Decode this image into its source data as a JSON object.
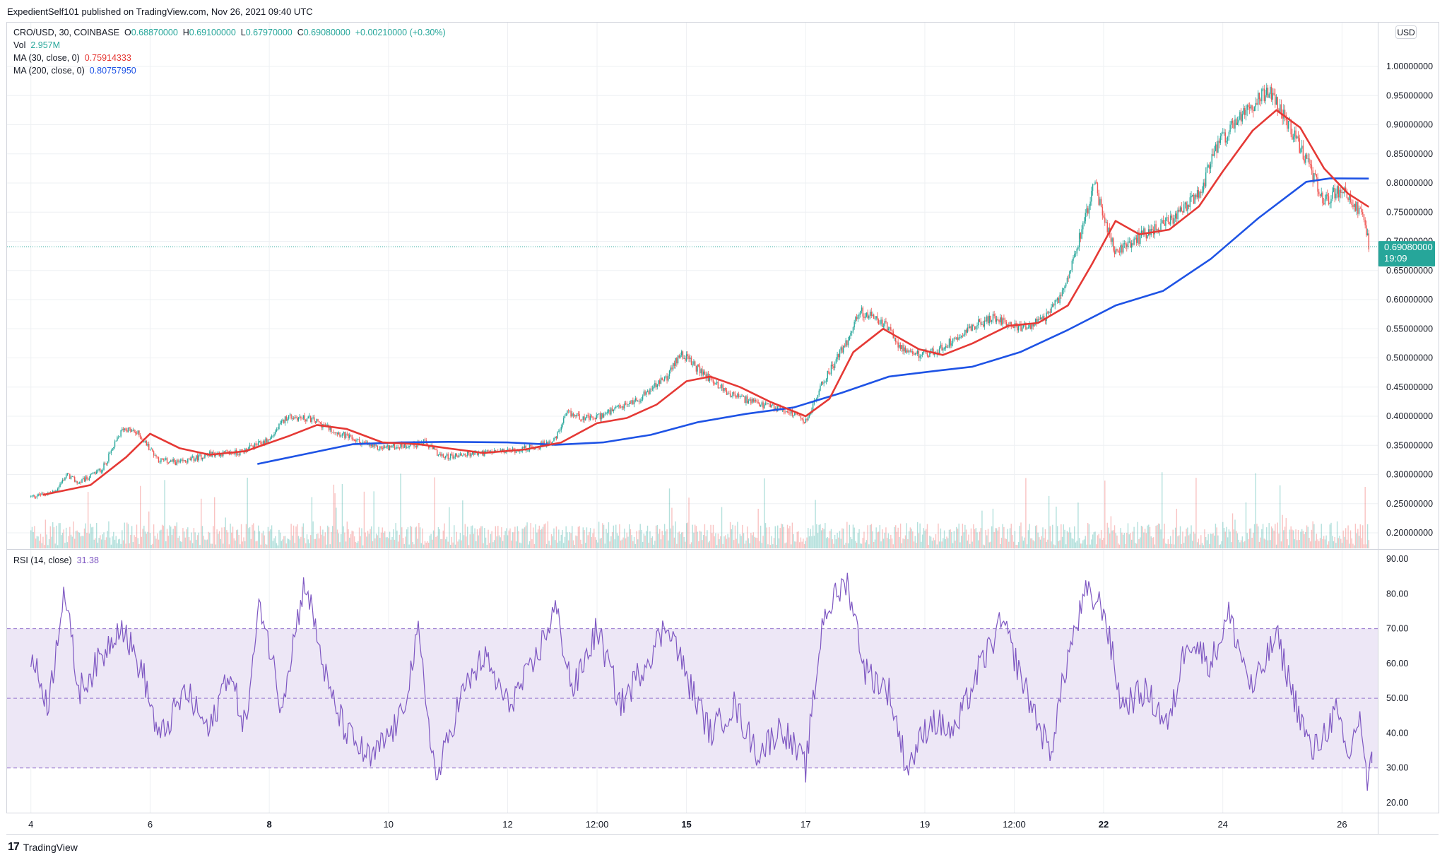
{
  "header": {
    "publisher_line": "ExpedientSelf101 published on TradingView.com, Nov 26, 2021 09:40 UTC"
  },
  "legend": {
    "symbol": "CRO/USD, 30, COINBASE",
    "open_label": "O",
    "open": "0.68870000",
    "high_label": "H",
    "high": "0.69100000",
    "low_label": "L",
    "low": "0.67970000",
    "close_label": "C",
    "close": "0.69080000",
    "change": "+0.00210000 (+0.30%)",
    "vol_label": "Vol",
    "vol": "2.957M",
    "ma30_label": "MA (30, close, 0)",
    "ma30": "0.75914333",
    "ma200_label": "MA (200, close, 0)",
    "ma200": "0.80757950",
    "rsi_label": "RSI (14, close)",
    "rsi": "31.38"
  },
  "price_axis": {
    "currency": "USD",
    "last_price": "0.69080000",
    "countdown": "19:09"
  },
  "footer": {
    "brand": "TradingView",
    "logo_glyph": "17"
  },
  "colors": {
    "up": "#26a69a",
    "down": "#ef5350",
    "ma30": "#e53935",
    "ma200": "#1e53e5",
    "rsi": "#7e57c2",
    "rsi_band": "#ede7f6",
    "grid": "#eef0f3"
  },
  "chart_data": [
    {
      "type": "candlestick",
      "title": "CRO/USD, 30, COINBASE",
      "ylabel": "USD",
      "ylim": [
        0.18,
        1.05
      ],
      "y_ticks": [
        "1.00000000",
        "0.95000000",
        "0.90000000",
        "0.85000000",
        "0.80000000",
        "0.75000000",
        "0.70000000",
        "0.65000000",
        "0.60000000",
        "0.55000000",
        "0.50000000",
        "0.45000000",
        "0.40000000",
        "0.35000000",
        "0.30000000",
        "0.25000000",
        "0.20000000"
      ],
      "x_ticks": [
        "4",
        "6",
        "8",
        "10",
        "12",
        "12:00",
        "15",
        "17",
        "19",
        "12:00",
        "22",
        "24",
        "26"
      ],
      "x_ticks_bold": [
        "8",
        "15",
        "22"
      ],
      "x_range_days": [
        3.6,
        26.6
      ],
      "price_path": [
        {
          "day": 4.0,
          "price": 0.262
        },
        {
          "day": 4.4,
          "price": 0.27
        },
        {
          "day": 4.6,
          "price": 0.3
        },
        {
          "day": 4.8,
          "price": 0.285
        },
        {
          "day": 5.2,
          "price": 0.31
        },
        {
          "day": 5.55,
          "price": 0.38
        },
        {
          "day": 5.8,
          "price": 0.37
        },
        {
          "day": 6.15,
          "price": 0.325
        },
        {
          "day": 6.5,
          "price": 0.32
        },
        {
          "day": 7.0,
          "price": 0.335
        },
        {
          "day": 7.5,
          "price": 0.338
        },
        {
          "day": 8.0,
          "price": 0.36
        },
        {
          "day": 8.3,
          "price": 0.4
        },
        {
          "day": 8.7,
          "price": 0.395
        },
        {
          "day": 9.3,
          "price": 0.365
        },
        {
          "day": 9.8,
          "price": 0.345
        },
        {
          "day": 10.3,
          "price": 0.35
        },
        {
          "day": 10.6,
          "price": 0.355
        },
        {
          "day": 10.9,
          "price": 0.33
        },
        {
          "day": 11.3,
          "price": 0.335
        },
        {
          "day": 12.0,
          "price": 0.34
        },
        {
          "day": 12.5,
          "price": 0.348
        },
        {
          "day": 12.8,
          "price": 0.36
        },
        {
          "day": 13.0,
          "price": 0.405
        },
        {
          "day": 13.4,
          "price": 0.395
        },
        {
          "day": 13.8,
          "price": 0.41
        },
        {
          "day": 14.2,
          "price": 0.43
        },
        {
          "day": 14.7,
          "price": 0.47
        },
        {
          "day": 14.9,
          "price": 0.51
        },
        {
          "day": 15.2,
          "price": 0.48
        },
        {
          "day": 15.7,
          "price": 0.44
        },
        {
          "day": 16.2,
          "price": 0.42
        },
        {
          "day": 16.7,
          "price": 0.41
        },
        {
          "day": 17.0,
          "price": 0.39
        },
        {
          "day": 17.3,
          "price": 0.46
        },
        {
          "day": 17.7,
          "price": 0.53
        },
        {
          "day": 17.9,
          "price": 0.58
        },
        {
          "day": 18.3,
          "price": 0.56
        },
        {
          "day": 18.7,
          "price": 0.505
        },
        {
          "day": 19.2,
          "price": 0.51
        },
        {
          "day": 19.7,
          "price": 0.55
        },
        {
          "day": 20.2,
          "price": 0.57
        },
        {
          "day": 20.6,
          "price": 0.55
        },
        {
          "day": 21.0,
          "price": 0.565
        },
        {
          "day": 21.3,
          "price": 0.61
        },
        {
          "day": 21.6,
          "price": 0.71
        },
        {
          "day": 21.85,
          "price": 0.8
        },
        {
          "day": 22.0,
          "price": 0.74
        },
        {
          "day": 22.2,
          "price": 0.68
        },
        {
          "day": 22.5,
          "price": 0.7
        },
        {
          "day": 22.8,
          "price": 0.72
        },
        {
          "day": 23.2,
          "price": 0.74
        },
        {
          "day": 23.6,
          "price": 0.78
        },
        {
          "day": 23.9,
          "price": 0.86
        },
        {
          "day": 24.1,
          "price": 0.89
        },
        {
          "day": 24.4,
          "price": 0.92
        },
        {
          "day": 24.6,
          "price": 0.95
        },
        {
          "day": 24.8,
          "price": 0.96
        },
        {
          "day": 25.1,
          "price": 0.9
        },
        {
          "day": 25.4,
          "price": 0.84
        },
        {
          "day": 25.7,
          "price": 0.77
        },
        {
          "day": 26.0,
          "price": 0.79
        },
        {
          "day": 26.2,
          "price": 0.76
        },
        {
          "day": 26.35,
          "price": 0.75
        },
        {
          "day": 26.45,
          "price": 0.691
        }
      ],
      "ma30_path": [
        {
          "day": 4.2,
          "price": 0.265
        },
        {
          "day": 5.0,
          "price": 0.282
        },
        {
          "day": 5.6,
          "price": 0.33
        },
        {
          "day": 6.0,
          "price": 0.37
        },
        {
          "day": 6.5,
          "price": 0.345
        },
        {
          "day": 7.0,
          "price": 0.334
        },
        {
          "day": 7.6,
          "price": 0.34
        },
        {
          "day": 8.3,
          "price": 0.365
        },
        {
          "day": 8.8,
          "price": 0.385
        },
        {
          "day": 9.3,
          "price": 0.378
        },
        {
          "day": 9.9,
          "price": 0.355
        },
        {
          "day": 10.5,
          "price": 0.352
        },
        {
          "day": 11.0,
          "price": 0.345
        },
        {
          "day": 11.6,
          "price": 0.337
        },
        {
          "day": 12.3,
          "price": 0.343
        },
        {
          "day": 12.9,
          "price": 0.355
        },
        {
          "day": 13.5,
          "price": 0.388
        },
        {
          "day": 14.0,
          "price": 0.397
        },
        {
          "day": 14.5,
          "price": 0.42
        },
        {
          "day": 15.0,
          "price": 0.46
        },
        {
          "day": 15.4,
          "price": 0.468
        },
        {
          "day": 15.9,
          "price": 0.45
        },
        {
          "day": 16.4,
          "price": 0.425
        },
        {
          "day": 17.0,
          "price": 0.4
        },
        {
          "day": 17.4,
          "price": 0.43
        },
        {
          "day": 17.8,
          "price": 0.51
        },
        {
          "day": 18.3,
          "price": 0.55
        },
        {
          "day": 18.9,
          "price": 0.515
        },
        {
          "day": 19.3,
          "price": 0.505
        },
        {
          "day": 19.8,
          "price": 0.525
        },
        {
          "day": 20.4,
          "price": 0.555
        },
        {
          "day": 20.9,
          "price": 0.56
        },
        {
          "day": 21.4,
          "price": 0.59
        },
        {
          "day": 21.8,
          "price": 0.66
        },
        {
          "day": 22.2,
          "price": 0.735
        },
        {
          "day": 22.6,
          "price": 0.712
        },
        {
          "day": 23.1,
          "price": 0.72
        },
        {
          "day": 23.6,
          "price": 0.76
        },
        {
          "day": 24.0,
          "price": 0.82
        },
        {
          "day": 24.5,
          "price": 0.89
        },
        {
          "day": 24.9,
          "price": 0.925
        },
        {
          "day": 25.3,
          "price": 0.895
        },
        {
          "day": 25.7,
          "price": 0.825
        },
        {
          "day": 26.1,
          "price": 0.782
        },
        {
          "day": 26.45,
          "price": 0.759
        }
      ],
      "ma200_path": [
        {
          "day": 7.8,
          "price": 0.318
        },
        {
          "day": 8.6,
          "price": 0.335
        },
        {
          "day": 9.4,
          "price": 0.352
        },
        {
          "day": 10.2,
          "price": 0.355
        },
        {
          "day": 11.0,
          "price": 0.356
        },
        {
          "day": 12.0,
          "price": 0.355
        },
        {
          "day": 12.8,
          "price": 0.351
        },
        {
          "day": 13.6,
          "price": 0.355
        },
        {
          "day": 14.4,
          "price": 0.368
        },
        {
          "day": 15.2,
          "price": 0.39
        },
        {
          "day": 16.0,
          "price": 0.404
        },
        {
          "day": 16.8,
          "price": 0.415
        },
        {
          "day": 17.6,
          "price": 0.44
        },
        {
          "day": 18.4,
          "price": 0.468
        },
        {
          "day": 19.2,
          "price": 0.478
        },
        {
          "day": 19.8,
          "price": 0.485
        },
        {
          "day": 20.6,
          "price": 0.51
        },
        {
          "day": 21.4,
          "price": 0.548
        },
        {
          "day": 22.2,
          "price": 0.59
        },
        {
          "day": 23.0,
          "price": 0.615
        },
        {
          "day": 23.8,
          "price": 0.67
        },
        {
          "day": 24.6,
          "price": 0.74
        },
        {
          "day": 25.4,
          "price": 0.802
        },
        {
          "day": 25.8,
          "price": 0.808
        },
        {
          "day": 26.45,
          "price": 0.8076
        }
      ]
    },
    {
      "type": "line",
      "title": "RSI (14, close)",
      "ylim": [
        17,
        93
      ],
      "y_ticks": [
        "90.00",
        "80.00",
        "70.00",
        "60.00",
        "50.00",
        "40.00",
        "30.00",
        "20.00"
      ],
      "bands": [
        30,
        50,
        70
      ],
      "rsi_path": [
        {
          "day": 4.0,
          "rsi": 62
        },
        {
          "day": 4.3,
          "rsi": 48
        },
        {
          "day": 4.55,
          "rsi": 82
        },
        {
          "day": 4.8,
          "rsi": 52
        },
        {
          "day": 5.2,
          "rsi": 62
        },
        {
          "day": 5.5,
          "rsi": 72
        },
        {
          "day": 5.9,
          "rsi": 56
        },
        {
          "day": 6.15,
          "rsi": 38
        },
        {
          "day": 6.6,
          "rsi": 52
        },
        {
          "day": 7.0,
          "rsi": 40
        },
        {
          "day": 7.3,
          "rsi": 58
        },
        {
          "day": 7.6,
          "rsi": 42
        },
        {
          "day": 7.85,
          "rsi": 78
        },
        {
          "day": 8.2,
          "rsi": 48
        },
        {
          "day": 8.6,
          "rsi": 84
        },
        {
          "day": 9.0,
          "rsi": 52
        },
        {
          "day": 9.3,
          "rsi": 40
        },
        {
          "day": 9.7,
          "rsi": 32
        },
        {
          "day": 10.2,
          "rsi": 44
        },
        {
          "day": 10.5,
          "rsi": 68
        },
        {
          "day": 10.8,
          "rsi": 26
        },
        {
          "day": 11.2,
          "rsi": 50
        },
        {
          "day": 11.6,
          "rsi": 62
        },
        {
          "day": 12.0,
          "rsi": 48
        },
        {
          "day": 12.4,
          "rsi": 58
        },
        {
          "day": 12.8,
          "rsi": 76
        },
        {
          "day": 13.1,
          "rsi": 52
        },
        {
          "day": 13.5,
          "rsi": 70
        },
        {
          "day": 13.9,
          "rsi": 48
        },
        {
          "day": 14.3,
          "rsi": 60
        },
        {
          "day": 14.7,
          "rsi": 72
        },
        {
          "day": 15.0,
          "rsi": 56
        },
        {
          "day": 15.4,
          "rsi": 40
        },
        {
          "day": 15.8,
          "rsi": 48
        },
        {
          "day": 16.2,
          "rsi": 34
        },
        {
          "day": 16.6,
          "rsi": 42
        },
        {
          "day": 17.0,
          "rsi": 30
        },
        {
          "day": 17.3,
          "rsi": 74
        },
        {
          "day": 17.7,
          "rsi": 84
        },
        {
          "day": 18.0,
          "rsi": 58
        },
        {
          "day": 18.4,
          "rsi": 52
        },
        {
          "day": 18.7,
          "rsi": 30
        },
        {
          "day": 19.1,
          "rsi": 44
        },
        {
          "day": 19.5,
          "rsi": 40
        },
        {
          "day": 19.9,
          "rsi": 58
        },
        {
          "day": 20.3,
          "rsi": 72
        },
        {
          "day": 20.7,
          "rsi": 52
        },
        {
          "day": 21.1,
          "rsi": 34
        },
        {
          "day": 21.4,
          "rsi": 62
        },
        {
          "day": 21.7,
          "rsi": 80
        },
        {
          "day": 22.0,
          "rsi": 76
        },
        {
          "day": 22.3,
          "rsi": 48
        },
        {
          "day": 22.7,
          "rsi": 52
        },
        {
          "day": 23.1,
          "rsi": 42
        },
        {
          "day": 23.4,
          "rsi": 68
        },
        {
          "day": 23.8,
          "rsi": 60
        },
        {
          "day": 24.1,
          "rsi": 74
        },
        {
          "day": 24.5,
          "rsi": 52
        },
        {
          "day": 24.9,
          "rsi": 68
        },
        {
          "day": 25.2,
          "rsi": 50
        },
        {
          "day": 25.5,
          "rsi": 34
        },
        {
          "day": 25.9,
          "rsi": 46
        },
        {
          "day": 26.1,
          "rsi": 32
        },
        {
          "day": 26.3,
          "rsi": 46
        },
        {
          "day": 26.42,
          "rsi": 25
        },
        {
          "day": 26.5,
          "rsi": 31.38
        }
      ]
    }
  ]
}
